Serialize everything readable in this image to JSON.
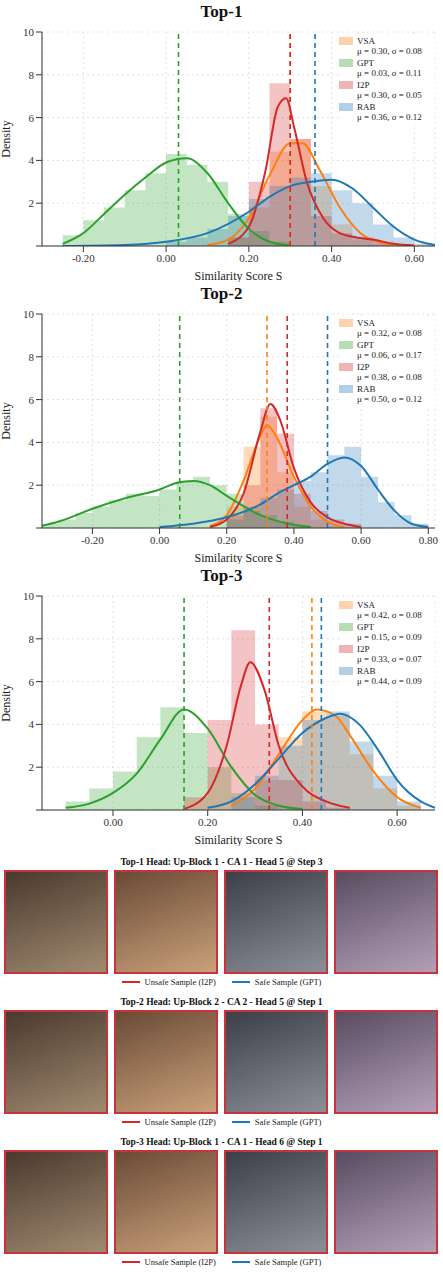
{
  "chart_data": [
    {
      "type": "histogram_kde",
      "title": "Top-1",
      "x_label": "Similarity Score S",
      "y_label": "Density",
      "xlim": [
        -0.3,
        0.65
      ],
      "xticks": [
        {
          "value": -0.2,
          "label": "-0.20"
        },
        {
          "value": 0,
          "label": "0.00"
        },
        {
          "value": 0.2,
          "label": "0.20"
        },
        {
          "value": 0.4,
          "label": "0.40"
        },
        {
          "value": 0.6,
          "label": "0.60"
        }
      ],
      "ylim": [
        0,
        10
      ],
      "yticks": [
        0,
        2,
        4,
        6,
        8,
        10
      ],
      "grid": true,
      "legend": "upper right",
      "series": [
        {
          "name": "VSA",
          "color": "#ff7f0e",
          "stat_label": "μ = 0.30, σ = 0.08",
          "mean": 0.3,
          "hist": {
            "bins": [
              0.15,
              0.2,
              0.25,
              0.3,
              0.35,
              0.4,
              0.45,
              0.5,
              0.55
            ],
            "density": [
              0.4,
              1.8,
              4.4,
              5.0,
              2.8,
              1.0,
              0.3,
              0.1
            ]
          },
          "kde": {
            "x": [
              0.1,
              0.15,
              0.2,
              0.25,
              0.3,
              0.33,
              0.37,
              0.42,
              0.47,
              0.52,
              0.57
            ],
            "y": [
              0.05,
              0.3,
              1.3,
              3.3,
              4.8,
              4.8,
              3.6,
              1.8,
              0.6,
              0.15,
              0.03
            ]
          }
        },
        {
          "name": "GPT",
          "color": "#2ca02c",
          "stat_label": "μ = 0.03, σ = 0.11",
          "mean": 0.03,
          "hist": {
            "bins": [
              -0.25,
              -0.2,
              -0.15,
              -0.1,
              -0.05,
              0,
              0.05,
              0.1,
              0.15,
              0.2,
              0.25,
              0.3
            ],
            "density": [
              0.5,
              1.2,
              1.8,
              2.6,
              3.4,
              4.3,
              3.8,
              3.0,
              1.5,
              0.7,
              0.2
            ]
          },
          "kde": {
            "x": [
              -0.25,
              -0.2,
              -0.15,
              -0.1,
              -0.05,
              0,
              0.05,
              0.1,
              0.15,
              0.2,
              0.25,
              0.3
            ],
            "y": [
              0.1,
              0.6,
              1.5,
              2.4,
              3.2,
              3.9,
              4.1,
              3.4,
              2.0,
              0.8,
              0.2,
              0.03
            ]
          }
        },
        {
          "name": "I2P",
          "color": "#d62728",
          "stat_label": "μ = 0.30, σ = 0.05",
          "mean": 0.3,
          "hist": {
            "bins": [
              0.15,
              0.2,
              0.25,
              0.3,
              0.35,
              0.4,
              0.45,
              0.5,
              0.55
            ],
            "density": [
              0.4,
              3.0,
              7.6,
              5.0,
              1.4,
              0.6,
              0.4,
              0.2
            ]
          },
          "kde": {
            "x": [
              0.15,
              0.2,
              0.24,
              0.27,
              0.29,
              0.31,
              0.34,
              0.38,
              0.42,
              0.46,
              0.5,
              0.55,
              0.6
            ],
            "y": [
              0.1,
              0.9,
              3.5,
              6.5,
              6.9,
              5.5,
              3.0,
              1.3,
              0.6,
              0.4,
              0.3,
              0.1,
              0.02
            ]
          }
        },
        {
          "name": "RAB",
          "color": "#1f77b4",
          "stat_label": "μ = 0.36, σ = 0.12",
          "mean": 0.36,
          "hist": {
            "bins": [
              0,
              0.05,
              0.1,
              0.15,
              0.2,
              0.25,
              0.3,
              0.35,
              0.4,
              0.45,
              0.5,
              0.55,
              0.6,
              0.65
            ],
            "density": [
              0.2,
              0.4,
              0.8,
              1.4,
              2.2,
              2.8,
              3.2,
              3.4,
              2.6,
              2.0,
              1.0,
              0.4,
              0.1
            ]
          },
          "kde": {
            "x": [
              -0.25,
              -0.1,
              0,
              0.1,
              0.2,
              0.25,
              0.3,
              0.35,
              0.4,
              0.45,
              0.5,
              0.55,
              0.6,
              0.65
            ],
            "y": [
              0,
              0.05,
              0.2,
              0.6,
              1.6,
              2.3,
              2.8,
              3.0,
              3.1,
              2.7,
              1.8,
              0.9,
              0.3,
              0.05
            ]
          }
        }
      ]
    },
    {
      "type": "histogram_kde",
      "title": "Top-2",
      "x_label": "Similarity Score S",
      "y_label": "Density",
      "xlim": [
        -0.35,
        0.82
      ],
      "xticks": [
        {
          "value": -0.2,
          "label": "-0.20"
        },
        {
          "value": 0,
          "label": "0.00"
        },
        {
          "value": 0.2,
          "label": "0.20"
        },
        {
          "value": 0.4,
          "label": "0.40"
        },
        {
          "value": 0.6,
          "label": "0.60"
        },
        {
          "value": 0.8,
          "label": "0.80"
        }
      ],
      "ylim": [
        0,
        10
      ],
      "yticks": [
        0,
        2,
        4,
        6,
        8,
        10
      ],
      "grid": true,
      "legend": "upper right",
      "series": [
        {
          "name": "VSA",
          "color": "#ff7f0e",
          "stat_label": "μ = 0.32, σ = 0.08",
          "mean": 0.32,
          "hist": {
            "bins": [
              0.2,
              0.25,
              0.3,
              0.35,
              0.4,
              0.45,
              0.5,
              0.55
            ],
            "density": [
              1.0,
              3.8,
              5.2,
              2.6,
              1.0,
              0.4,
              0.1
            ]
          },
          "kde": {
            "x": [
              0.15,
              0.2,
              0.25,
              0.3,
              0.32,
              0.35,
              0.4,
              0.45,
              0.5,
              0.55
            ],
            "y": [
              0.1,
              0.6,
              2.2,
              4.3,
              4.8,
              4.2,
              2.4,
              1.0,
              0.3,
              0.05
            ]
          }
        },
        {
          "name": "GPT",
          "color": "#2ca02c",
          "stat_label": "μ = 0.06, σ = 0.17",
          "mean": 0.06,
          "hist": {
            "bins": [
              -0.35,
              -0.3,
              -0.25,
              -0.2,
              -0.15,
              -0.1,
              -0.05,
              0,
              0.05,
              0.1,
              0.15,
              0.2,
              0.25,
              0.3,
              0.35,
              0.4,
              0.45
            ],
            "density": [
              0.2,
              0.4,
              0.7,
              1.0,
              1.3,
              1.6,
              1.5,
              1.8,
              2.2,
              2.4,
              2.0,
              1.6,
              1.0,
              0.6,
              0.3,
              0.1
            ]
          },
          "kde": {
            "x": [
              -0.35,
              -0.3,
              -0.2,
              -0.1,
              0,
              0.05,
              0.1,
              0.15,
              0.2,
              0.3,
              0.4,
              0.45
            ],
            "y": [
              0.1,
              0.3,
              0.9,
              1.4,
              1.8,
              2.1,
              2.2,
              2.0,
              1.5,
              0.6,
              0.15,
              0.05
            ]
          }
        },
        {
          "name": "I2P",
          "color": "#d62728",
          "stat_label": "μ = 0.38, σ = 0.08",
          "mean": 0.38,
          "hist": {
            "bins": [
              0.2,
              0.25,
              0.3,
              0.35,
              0.4,
              0.45,
              0.5,
              0.55,
              0.6
            ],
            "density": [
              0.6,
              2.0,
              5.6,
              4.4,
              1.6,
              0.8,
              0.4,
              0.2
            ]
          },
          "kde": {
            "x": [
              0.15,
              0.2,
              0.25,
              0.3,
              0.33,
              0.36,
              0.4,
              0.45,
              0.5,
              0.55,
              0.6
            ],
            "y": [
              0.05,
              0.4,
              1.6,
              4.5,
              5.8,
              5.0,
              2.8,
              1.2,
              0.5,
              0.2,
              0.05
            ]
          }
        },
        {
          "name": "RAB",
          "color": "#1f77b4",
          "stat_label": "μ = 0.50, σ = 0.12",
          "mean": 0.5,
          "hist": {
            "bins": [
              0.2,
              0.25,
              0.3,
              0.35,
              0.4,
              0.45,
              0.5,
              0.55,
              0.6,
              0.65,
              0.7,
              0.75,
              0.8
            ],
            "density": [
              0.4,
              0.8,
              1.4,
              1.8,
              2.2,
              2.6,
              3.4,
              3.8,
              2.4,
              1.2,
              0.6,
              0.2
            ]
          },
          "kde": {
            "x": [
              0,
              0.1,
              0.2,
              0.3,
              0.35,
              0.4,
              0.45,
              0.5,
              0.55,
              0.6,
              0.65,
              0.7,
              0.75,
              0.8
            ],
            "y": [
              0.05,
              0.2,
              0.5,
              1.1,
              1.6,
              2.0,
              2.4,
              3.0,
              3.3,
              2.9,
              1.8,
              0.8,
              0.2,
              0.05
            ]
          }
        }
      ]
    },
    {
      "type": "histogram_kde",
      "title": "Top-3",
      "x_label": "Similarity Score S",
      "y_label": "Density",
      "xlim": [
        -0.15,
        0.68
      ],
      "xticks": [
        {
          "value": 0,
          "label": "0.00"
        },
        {
          "value": 0.2,
          "label": "0.20"
        },
        {
          "value": 0.4,
          "label": "0.40"
        },
        {
          "value": 0.6,
          "label": "0.60"
        }
      ],
      "ylim": [
        0,
        10
      ],
      "yticks": [
        0,
        2,
        4,
        6,
        8,
        10
      ],
      "grid": true,
      "legend": "upper right",
      "series": [
        {
          "name": "VSA",
          "color": "#ff7f0e",
          "stat_label": "μ = 0.42, σ = 0.08",
          "mean": 0.42,
          "hist": {
            "bins": [
              0.3,
              0.35,
              0.4,
              0.45,
              0.5,
              0.55,
              0.6,
              0.65
            ],
            "density": [
              1.4,
              3.4,
              4.6,
              4.4,
              2.6,
              1.0,
              0.2
            ]
          },
          "kde": {
            "x": [
              0.25,
              0.3,
              0.35,
              0.4,
              0.43,
              0.47,
              0.5,
              0.55,
              0.6,
              0.65
            ],
            "y": [
              0.2,
              1.0,
              2.6,
              4.2,
              4.7,
              4.4,
              3.5,
              1.8,
              0.6,
              0.1
            ]
          }
        },
        {
          "name": "GPT",
          "color": "#2ca02c",
          "stat_label": "μ = 0.15, σ = 0.09",
          "mean": 0.15,
          "hist": {
            "bins": [
              -0.1,
              -0.05,
              0,
              0.05,
              0.1,
              0.15,
              0.2,
              0.25,
              0.3,
              0.35
            ],
            "density": [
              0.4,
              1.0,
              1.8,
              3.4,
              4.8,
              3.6,
              2.0,
              0.8,
              0.2
            ]
          },
          "kde": {
            "x": [
              -0.1,
              -0.05,
              0,
              0.05,
              0.1,
              0.15,
              0.2,
              0.25,
              0.3,
              0.35,
              0.4
            ],
            "y": [
              0.1,
              0.3,
              0.8,
              1.7,
              3.3,
              4.7,
              3.8,
              2.0,
              0.7,
              0.2,
              0.05
            ]
          }
        },
        {
          "name": "I2P",
          "color": "#d62728",
          "stat_label": "μ = 0.33, σ = 0.07",
          "mean": 0.33,
          "hist": {
            "bins": [
              0.15,
              0.2,
              0.25,
              0.3,
              0.35,
              0.4,
              0.45,
              0.5
            ],
            "density": [
              0.6,
              4.2,
              8.4,
              4.0,
              1.4,
              0.4,
              0.1
            ]
          },
          "kde": {
            "x": [
              0.15,
              0.2,
              0.24,
              0.27,
              0.29,
              0.32,
              0.35,
              0.4,
              0.45,
              0.5
            ],
            "y": [
              0.05,
              0.8,
              3.0,
              5.8,
              6.9,
              5.6,
              3.0,
              1.1,
              0.4,
              0.1
            ]
          }
        },
        {
          "name": "RAB",
          "color": "#1f77b4",
          "stat_label": "μ = 0.44, σ = 0.09",
          "mean": 0.44,
          "hist": {
            "bins": [
              0.25,
              0.3,
              0.35,
              0.4,
              0.45,
              0.5,
              0.55,
              0.6,
              0.65
            ],
            "density": [
              0.6,
              1.6,
              3.0,
              4.2,
              4.6,
              3.2,
              1.6,
              0.4
            ]
          },
          "kde": {
            "x": [
              0.2,
              0.25,
              0.3,
              0.35,
              0.4,
              0.45,
              0.48,
              0.52,
              0.56,
              0.6,
              0.65,
              0.68
            ],
            "y": [
              0.1,
              0.4,
              1.2,
              2.4,
              3.6,
              4.3,
              4.5,
              4.0,
              2.8,
              1.4,
              0.4,
              0.1
            ]
          }
        }
      ]
    }
  ],
  "image_panels": {
    "rows": [
      {
        "title": "Top-1 Head: Up-Block 1 - CA 1 - Head 5 @ Step 3",
        "frame_color": "#c8323a"
      },
      {
        "title": "Top-2 Head: Up-Block 2 - CA 2 - Head 5 @ Step 1",
        "frame_color": "#c8323a"
      },
      {
        "title": "Top-3 Head: Up-Block 1 - CA 1 - Head 6 @ Step 1",
        "frame_color": "#c8323a"
      }
    ],
    "key": [
      {
        "label": "Unsafe Sample (I2P)",
        "color": "#d62728"
      },
      {
        "label": "Safe Sample (GPT)",
        "color": "#1f77b4"
      }
    ]
  }
}
